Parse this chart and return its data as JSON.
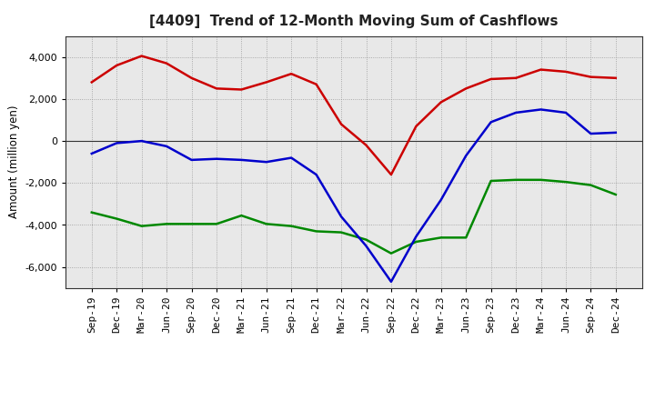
{
  "title": "[4409]  Trend of 12-Month Moving Sum of Cashflows",
  "ylabel": "Amount (million yen)",
  "background_color": "#ffffff",
  "plot_bg_color": "#e8e8e8",
  "grid_color": "#999999",
  "x_labels": [
    "Sep-19",
    "Dec-19",
    "Mar-20",
    "Jun-20",
    "Sep-20",
    "Dec-20",
    "Mar-21",
    "Jun-21",
    "Sep-21",
    "Dec-21",
    "Mar-22",
    "Jun-22",
    "Sep-22",
    "Dec-22",
    "Mar-23",
    "Jun-23",
    "Sep-23",
    "Dec-23",
    "Mar-24",
    "Jun-24",
    "Sep-24",
    "Dec-24"
  ],
  "operating": [
    2800,
    3600,
    4050,
    3700,
    3000,
    2500,
    2450,
    2800,
    3200,
    2700,
    800,
    -200,
    -1600,
    700,
    1850,
    2500,
    2950,
    3000,
    3400,
    3300,
    3050,
    3000
  ],
  "investing": [
    -3400,
    -3700,
    -4050,
    -3950,
    -3950,
    -3950,
    -3550,
    -3950,
    -4050,
    -4300,
    -4350,
    -4700,
    -5350,
    -4800,
    -4600,
    -4600,
    -1900,
    -1850,
    -1850,
    -1950,
    -2100,
    -2550
  ],
  "free": [
    -600,
    -100,
    0,
    -250,
    -900,
    -850,
    -900,
    -1000,
    -800,
    -1600,
    -3600,
    -5000,
    -6700,
    -4550,
    -2800,
    -700,
    900,
    1350,
    1500,
    1350,
    350,
    400
  ],
  "op_color": "#cc0000",
  "inv_color": "#008800",
  "free_color": "#0000cc",
  "ylim": [
    -7000,
    5000
  ],
  "yticks": [
    -6000,
    -4000,
    -2000,
    0,
    2000,
    4000
  ],
  "line_width": 1.8,
  "title_fontsize": 11,
  "label_fontsize": 8.5,
  "tick_fontsize": 8,
  "legend_fontsize": 8.5
}
